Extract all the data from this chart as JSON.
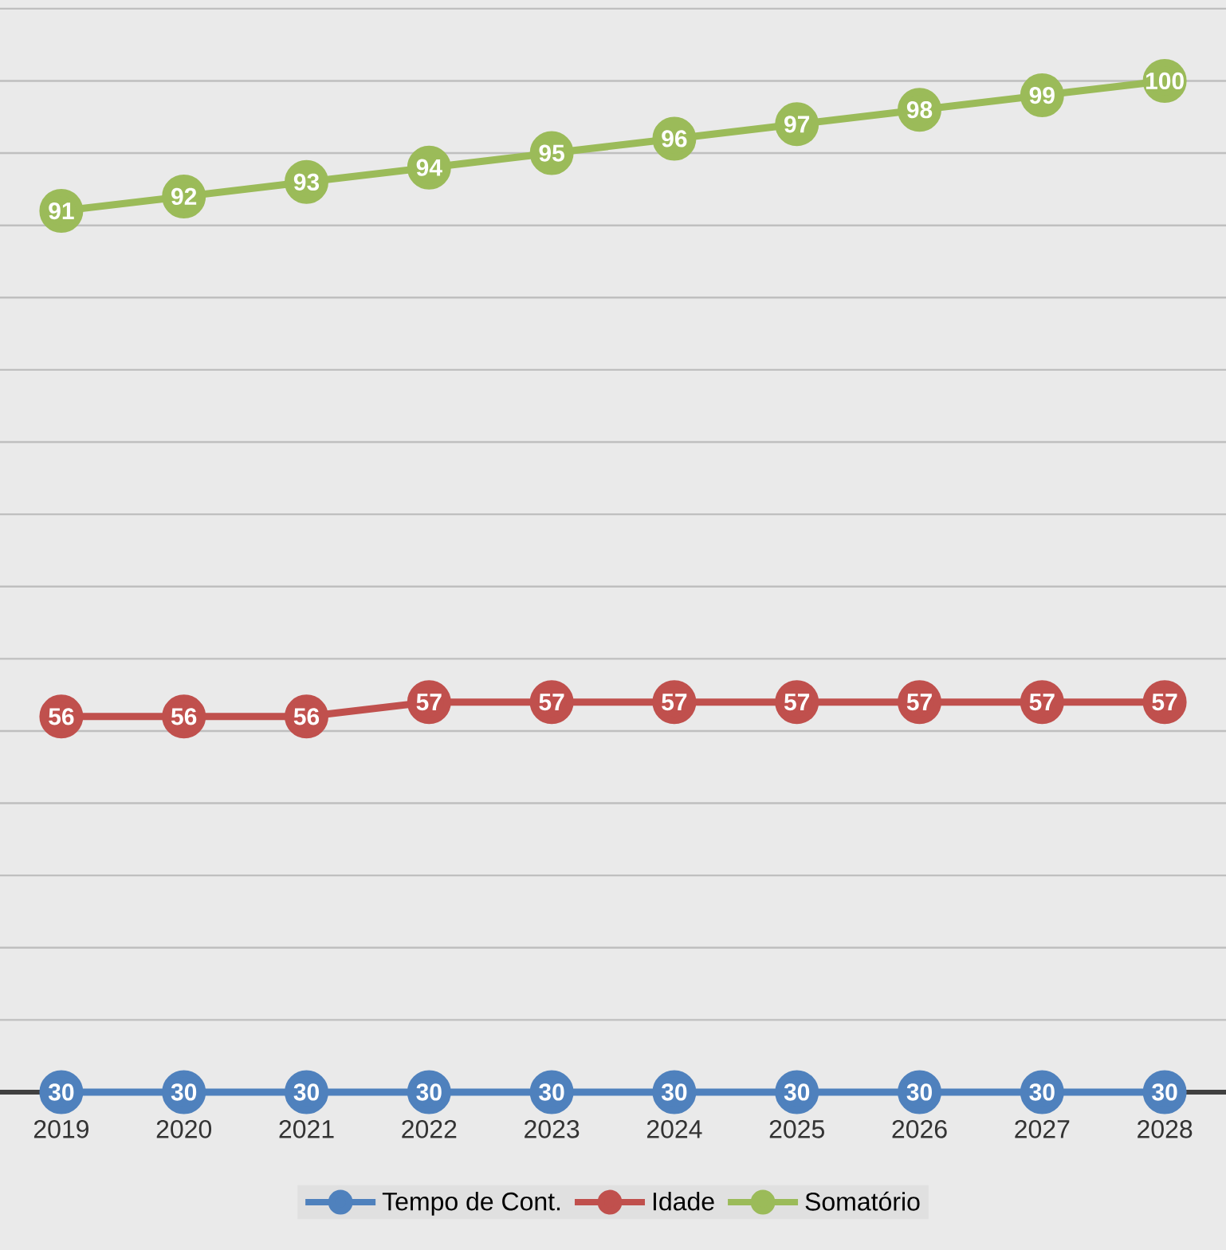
{
  "chart_data": {
    "type": "line",
    "categories": [
      "2019",
      "2020",
      "2021",
      "2022",
      "2023",
      "2024",
      "2025",
      "2026",
      "2027",
      "2028"
    ],
    "series": [
      {
        "name": "Tempo de Cont.",
        "color": "#4f81bd",
        "values": [
          30,
          30,
          30,
          30,
          30,
          30,
          30,
          30,
          30,
          30
        ]
      },
      {
        "name": "Idade",
        "color": "#c0504d",
        "values": [
          56,
          56,
          56,
          57,
          57,
          57,
          57,
          57,
          57,
          57
        ]
      },
      {
        "name": "Somatório",
        "color": "#9bbb59",
        "values": [
          91,
          92,
          93,
          94,
          95,
          96,
          97,
          98,
          99,
          100
        ]
      }
    ],
    "tick_labels": "x",
    "grid": "y",
    "legend": "bottom",
    "marker": "circle",
    "line_style": "solid",
    "data_labels": true
  }
}
